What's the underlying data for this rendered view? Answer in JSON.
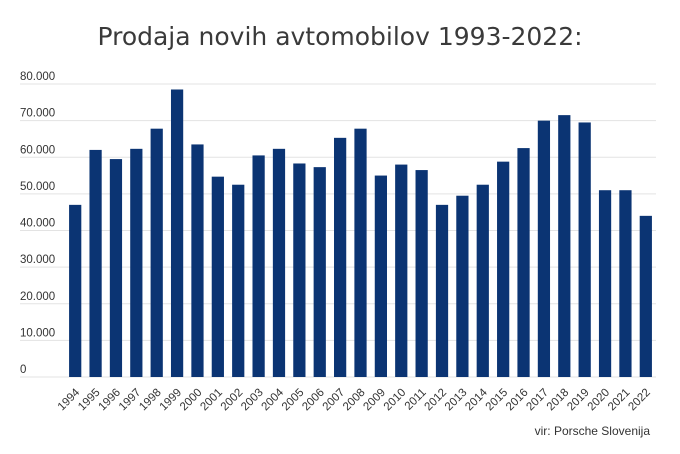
{
  "chart_data": {
    "type": "bar",
    "title": "Prodaja novih avtomobilov 1993-2022:",
    "categories": [
      "1994",
      "1995",
      "1996",
      "1997",
      "1998",
      "1999",
      "2000",
      "2001",
      "2002",
      "2003",
      "2004",
      "2005",
      "2006",
      "2007",
      "2008",
      "2009",
      "2010",
      "2011",
      "2012",
      "2013",
      "2014",
      "2015",
      "2016",
      "2017",
      "2018",
      "2019",
      "2020",
      "2021",
      "2022"
    ],
    "values": [
      47000,
      62000,
      59500,
      62300,
      67800,
      78500,
      63500,
      54700,
      52500,
      60500,
      62300,
      58300,
      57300,
      65300,
      67800,
      55000,
      58000,
      56500,
      47000,
      49500,
      52500,
      58800,
      62500,
      70000,
      71500,
      69500,
      51000,
      51000,
      44000
    ],
    "ylim": [
      0,
      80000
    ],
    "yticks": [
      {
        "value": 0,
        "label": "0"
      },
      {
        "value": 10000,
        "label": "10.000"
      },
      {
        "value": 20000,
        "label": "20.000"
      },
      {
        "value": 30000,
        "label": "30.000"
      },
      {
        "value": 40000,
        "label": "40.000"
      },
      {
        "value": 50000,
        "label": "50.000"
      },
      {
        "value": 60000,
        "label": "60.000"
      },
      {
        "value": 70000,
        "label": "70.000"
      },
      {
        "value": 80000,
        "label": "80.000"
      }
    ],
    "grid": true,
    "bar_color": "#0b3473",
    "source": "vir: Porsche Slovenija"
  }
}
